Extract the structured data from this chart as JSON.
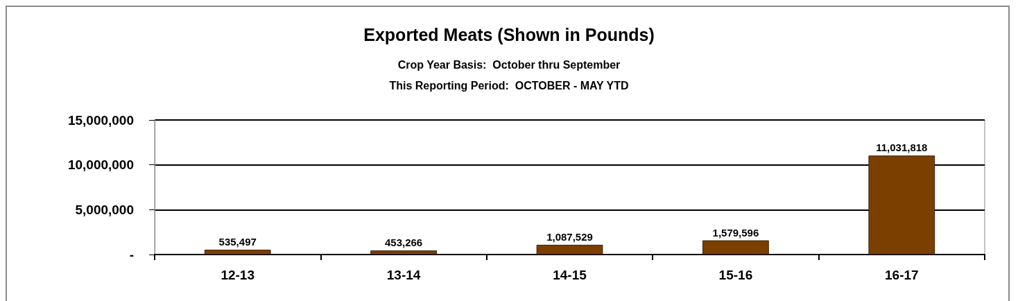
{
  "chart_data": {
    "type": "bar",
    "title": "Exported Meats (Shown in Pounds)",
    "subtitle": "Crop Year Basis:  October thru September\nThis Reporting Period:  OCTOBER - MAY YTD",
    "categories": [
      "12-13",
      "13-14",
      "14-15",
      "15-16",
      "16-17"
    ],
    "values": [
      535497,
      453266,
      1087529,
      1579596,
      11031818
    ],
    "value_labels": [
      "535,497",
      "453,266",
      "1,087,529",
      "1,579,596",
      "11,031,818"
    ],
    "color": "#7b3f00",
    "ylim": [
      0,
      15000000
    ],
    "yticks": [
      {
        "value": 0,
        "label": "-"
      },
      {
        "value": 5000000,
        "label": "5,000,000"
      },
      {
        "value": 10000000,
        "label": "10,000,000"
      },
      {
        "value": 15000000,
        "label": "15,000,000"
      }
    ],
    "grid": "y"
  }
}
